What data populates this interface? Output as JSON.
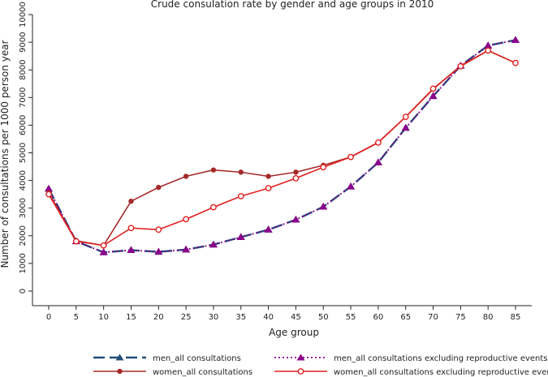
{
  "chart_data": {
    "type": "line",
    "title": "Crude consulation rate by gender and age groups in 2010",
    "xlabel": "Age group",
    "ylabel": "Number of consultations per 1000 person year",
    "x": [
      0,
      5,
      10,
      15,
      20,
      25,
      30,
      35,
      40,
      45,
      50,
      55,
      60,
      65,
      70,
      75,
      80,
      85
    ],
    "xlim": [
      0,
      85
    ],
    "ylim": [
      0,
      10000
    ],
    "xticks": [
      "0",
      "5",
      "10",
      "15",
      "20",
      "25",
      "30",
      "35",
      "40",
      "45",
      "50",
      "55",
      "60",
      "65",
      "70",
      "75",
      "80",
      "85"
    ],
    "yticks": [
      "0",
      "1000",
      "2000",
      "3000",
      "4000",
      "5000",
      "6000",
      "7000",
      "8000",
      "9000",
      "10000"
    ],
    "grid": false,
    "legend_position": "bottom",
    "series": [
      {
        "name": "men_all consultations",
        "color": "#1f4e79",
        "dash": "long-dash",
        "marker": "triangle",
        "values": [
          3700,
          1800,
          1400,
          1480,
          1420,
          1500,
          1680,
          1950,
          2220,
          2580,
          3050,
          3780,
          4650,
          5900,
          7050,
          8150,
          8880,
          9080
        ]
      },
      {
        "name": "men_all consultations excluding reproductive events",
        "color": "#8b008b",
        "dash": "dotted",
        "marker": "triangle",
        "values": [
          3700,
          1800,
          1400,
          1480,
          1420,
          1500,
          1680,
          1950,
          2220,
          2580,
          3050,
          3780,
          4650,
          5900,
          7050,
          8150,
          8880,
          9080
        ]
      },
      {
        "name": "women_all consultations",
        "color": "#a52a2a",
        "dash": "solid",
        "marker": "circle",
        "values": [
          3550,
          1820,
          1650,
          3250,
          3750,
          4150,
          4380,
          4300,
          4150,
          4300,
          4550,
          4850,
          5380,
          6300,
          7300,
          8150,
          8700,
          8250
        ]
      },
      {
        "name": "women_all consultations excluding reproductive events",
        "color": "#e02020",
        "dash": "solid",
        "marker": "circle-open",
        "values": [
          3500,
          1800,
          1650,
          2280,
          2220,
          2600,
          3030,
          3430,
          3720,
          4080,
          4480,
          4850,
          5370,
          6300,
          7320,
          8130,
          8700,
          8250
        ]
      }
    ]
  }
}
